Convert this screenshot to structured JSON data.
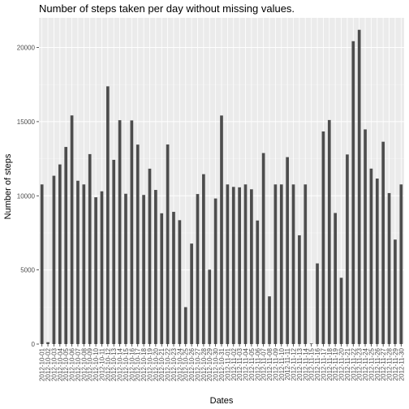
{
  "chart_data": {
    "type": "bar",
    "title": "Number of steps taken per day without missing values.",
    "xlabel": "Dates",
    "ylabel": "Number of steps",
    "ylim": [
      0,
      22000
    ],
    "yticks": [
      0,
      5000,
      10000,
      15000,
      20000
    ],
    "grid": true,
    "legend": "none",
    "colors": {
      "bar": "#4d4d4d",
      "panel": "#ebebeb",
      "grid_major": "#ffffff",
      "grid_minor": "#f5f5f5"
    },
    "categories": [
      "2012-10-01",
      "2012-10-02",
      "2012-10-03",
      "2012-10-04",
      "2012-10-05",
      "2012-10-06",
      "2012-10-07",
      "2012-10-08",
      "2012-10-09",
      "2012-10-10",
      "2012-10-11",
      "2012-10-12",
      "2012-10-13",
      "2012-10-14",
      "2012-10-15",
      "2012-10-16",
      "2012-10-17",
      "2012-10-18",
      "2012-10-19",
      "2012-10-20",
      "2012-10-21",
      "2012-10-22",
      "2012-10-23",
      "2012-10-24",
      "2012-10-25",
      "2012-10-26",
      "2012-10-27",
      "2012-10-28",
      "2012-10-29",
      "2012-10-30",
      "2012-10-31",
      "2012-11-01",
      "2012-11-02",
      "2012-11-03",
      "2012-11-04",
      "2012-11-05",
      "2012-11-06",
      "2012-11-07",
      "2012-11-08",
      "2012-11-09",
      "2012-11-10",
      "2012-11-11",
      "2012-11-12",
      "2012-11-13",
      "2012-11-14",
      "2012-11-15",
      "2012-11-16",
      "2012-11-17",
      "2012-11-18",
      "2012-11-19",
      "2012-11-20",
      "2012-11-21",
      "2012-11-22",
      "2012-11-23",
      "2012-11-24",
      "2012-11-25",
      "2012-11-26",
      "2012-11-27",
      "2012-11-28",
      "2012-11-29",
      "2012-11-30"
    ],
    "values": [
      10766,
      126,
      11352,
      12116,
      13294,
      15420,
      11015,
      10766,
      12811,
      9900,
      10304,
      17382,
      12426,
      15098,
      10139,
      15084,
      13452,
      10056,
      11829,
      10395,
      8821,
      13460,
      8918,
      8355,
      2492,
      6778,
      10119,
      11458,
      5018,
      9819,
      15414,
      10766,
      10600,
      10571,
      10766,
      10439,
      8334,
      12883,
      3219,
      10766,
      10766,
      12608,
      10765,
      7336,
      10766,
      41,
      5441,
      14339,
      15110,
      8841,
      4472,
      12787,
      20427,
      21194,
      14478,
      11834,
      11162,
      13646,
      10183,
      7047,
      10766
    ]
  }
}
